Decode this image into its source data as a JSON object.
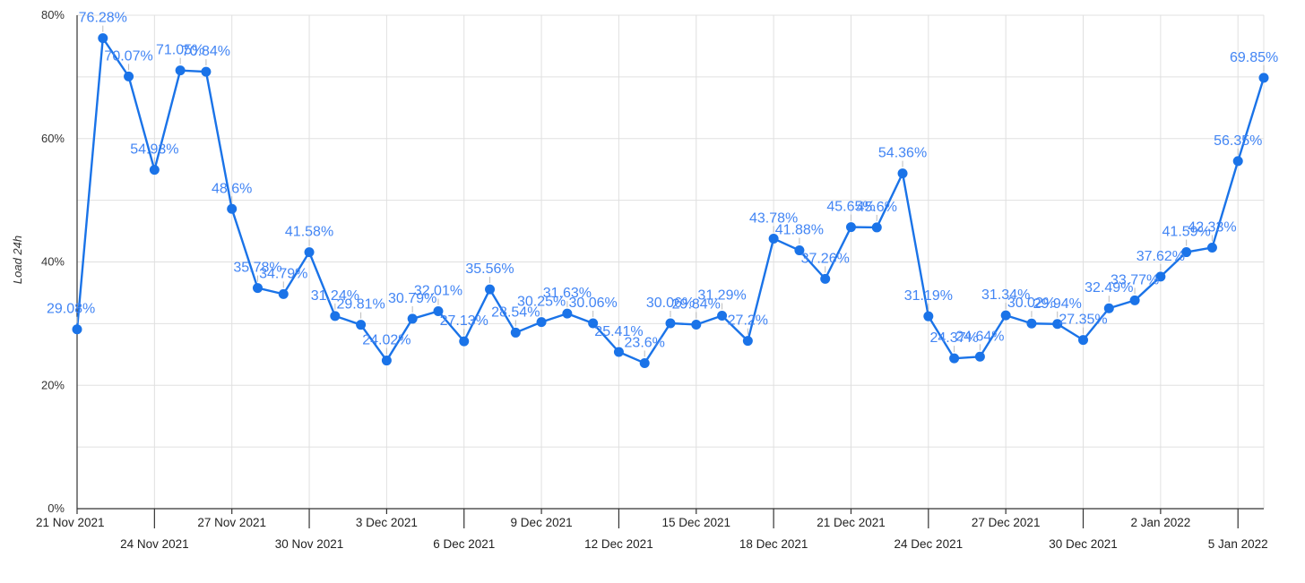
{
  "chart_data": {
    "type": "line",
    "title": "",
    "xlabel": "",
    "ylabel": "Load 24h",
    "ylim": [
      0,
      80
    ],
    "y_ticks": [
      "0%",
      "20%",
      "40%",
      "60%",
      "80%"
    ],
    "grid": true,
    "legend": "none",
    "line_color": "#1a73e8",
    "label_color": "#4285f4",
    "x_tick_labels": [
      "21 Nov 2021",
      "24 Nov 2021",
      "27 Nov 2021",
      "30 Nov 2021",
      "3 Dec 2021",
      "6 Dec 2021",
      "9 Dec 2021",
      "12 Dec 2021",
      "15 Dec 2021",
      "18 Dec 2021",
      "21 Dec 2021",
      "24 Dec 2021",
      "27 Dec 2021",
      "30 Dec 2021",
      "2 Jan 2022",
      "5 Jan 2022"
    ],
    "series": [
      {
        "x": [
          "2021-11-21",
          "2021-11-22",
          "2021-11-23",
          "2021-11-24",
          "2021-11-25",
          "2021-11-26",
          "2021-11-27",
          "2021-11-28",
          "2021-11-29",
          "2021-11-30",
          "2021-12-01",
          "2021-12-02",
          "2021-12-03",
          "2021-12-04",
          "2021-12-05",
          "2021-12-06",
          "2021-12-07",
          "2021-12-08",
          "2021-12-09",
          "2021-12-10",
          "2021-12-11",
          "2021-12-12",
          "2021-12-13",
          "2021-12-14",
          "2021-12-15",
          "2021-12-16",
          "2021-12-17",
          "2021-12-18",
          "2021-12-19",
          "2021-12-20",
          "2021-12-21",
          "2021-12-22",
          "2021-12-23",
          "2021-12-24",
          "2021-12-25",
          "2021-12-26",
          "2021-12-27",
          "2021-12-28",
          "2021-12-29",
          "2021-12-30",
          "2021-12-31",
          "2022-01-01",
          "2022-01-02",
          "2022-01-03",
          "2022-01-04",
          "2022-01-05",
          "2022-01-06"
        ],
        "values": [
          29.08,
          76.28,
          70.07,
          54.93,
          71.05,
          70.84,
          48.6,
          35.78,
          34.79,
          41.58,
          31.24,
          29.81,
          24.02,
          30.79,
          32.01,
          27.13,
          35.56,
          28.54,
          30.25,
          31.63,
          30.06,
          25.41,
          23.6,
          30.06,
          29.84,
          31.29,
          27.2,
          43.78,
          41.88,
          37.26,
          45.65,
          45.6,
          54.36,
          31.19,
          24.37,
          24.64,
          31.34,
          30.02,
          29.94,
          27.35,
          32.49,
          33.77,
          37.62,
          41.59,
          42.33,
          56.35,
          69.85
        ],
        "labels": [
          "29.08%",
          "76.28%",
          "70.07%",
          "54.93%",
          "71.05%",
          "70.84%",
          "48.6%",
          "35.78%",
          "34.79%",
          "41.58%",
          "31.24%",
          "29.81%",
          "24.02%",
          "30.79%",
          "32.01%",
          "27.13%",
          "35.56%",
          "28.54%",
          "30.25%",
          "31.63%",
          "30.06%",
          "25.41%",
          "23.6%",
          "30.06%",
          "29.84%",
          "31.29%",
          "27.2%",
          "43.78%",
          "41.88%",
          "37.26%",
          "45.65%",
          "45.6%",
          "54.36%",
          "31.19%",
          "24.37%",
          "24.64%",
          "31.34%",
          "30.02%",
          "29.94%",
          "27.35%",
          "32.49%",
          "33.77%",
          "37.62%",
          "41.59%",
          "42.33%",
          "56.35%",
          "69.85%"
        ]
      }
    ]
  }
}
